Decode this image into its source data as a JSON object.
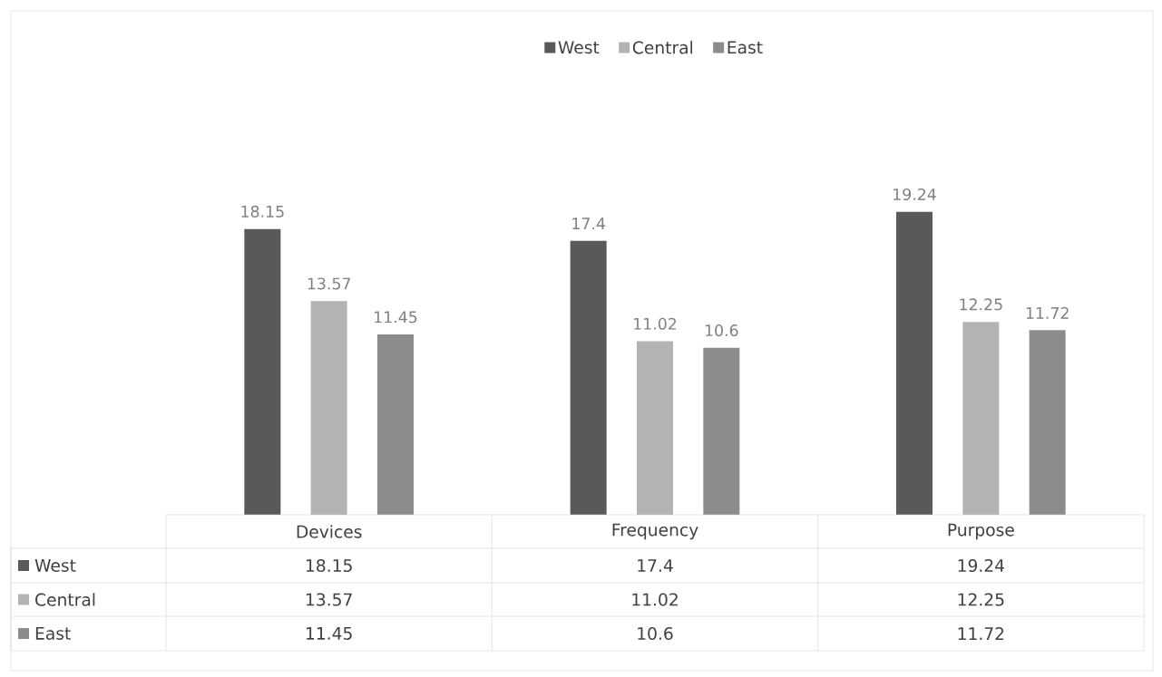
{
  "chart_data": {
    "type": "bar",
    "categories": [
      "Devices",
      "Frequency",
      "Purpose"
    ],
    "series": [
      {
        "name": "West",
        "color": "#595959",
        "values": [
          18.15,
          17.4,
          19.24
        ],
        "value_labels": [
          "18.15",
          "17.4",
          "19.24"
        ]
      },
      {
        "name": "Central",
        "color": "#b3b3b3",
        "values": [
          13.57,
          11.02,
          12.25
        ],
        "value_labels": [
          "13.57",
          "11.02",
          "12.25"
        ]
      },
      {
        "name": "East",
        "color": "#8c8c8c",
        "values": [
          11.45,
          10.6,
          11.72
        ],
        "value_labels": [
          "11.45",
          "10.6",
          "11.72"
        ]
      }
    ],
    "annotations": [
      "18.15",
      "17.4",
      "19.24",
      "13.57",
      "11.02",
      "12.25",
      "11.45",
      "10.6",
      "11.72"
    ],
    "data_labels": true,
    "legend": "top"
  }
}
